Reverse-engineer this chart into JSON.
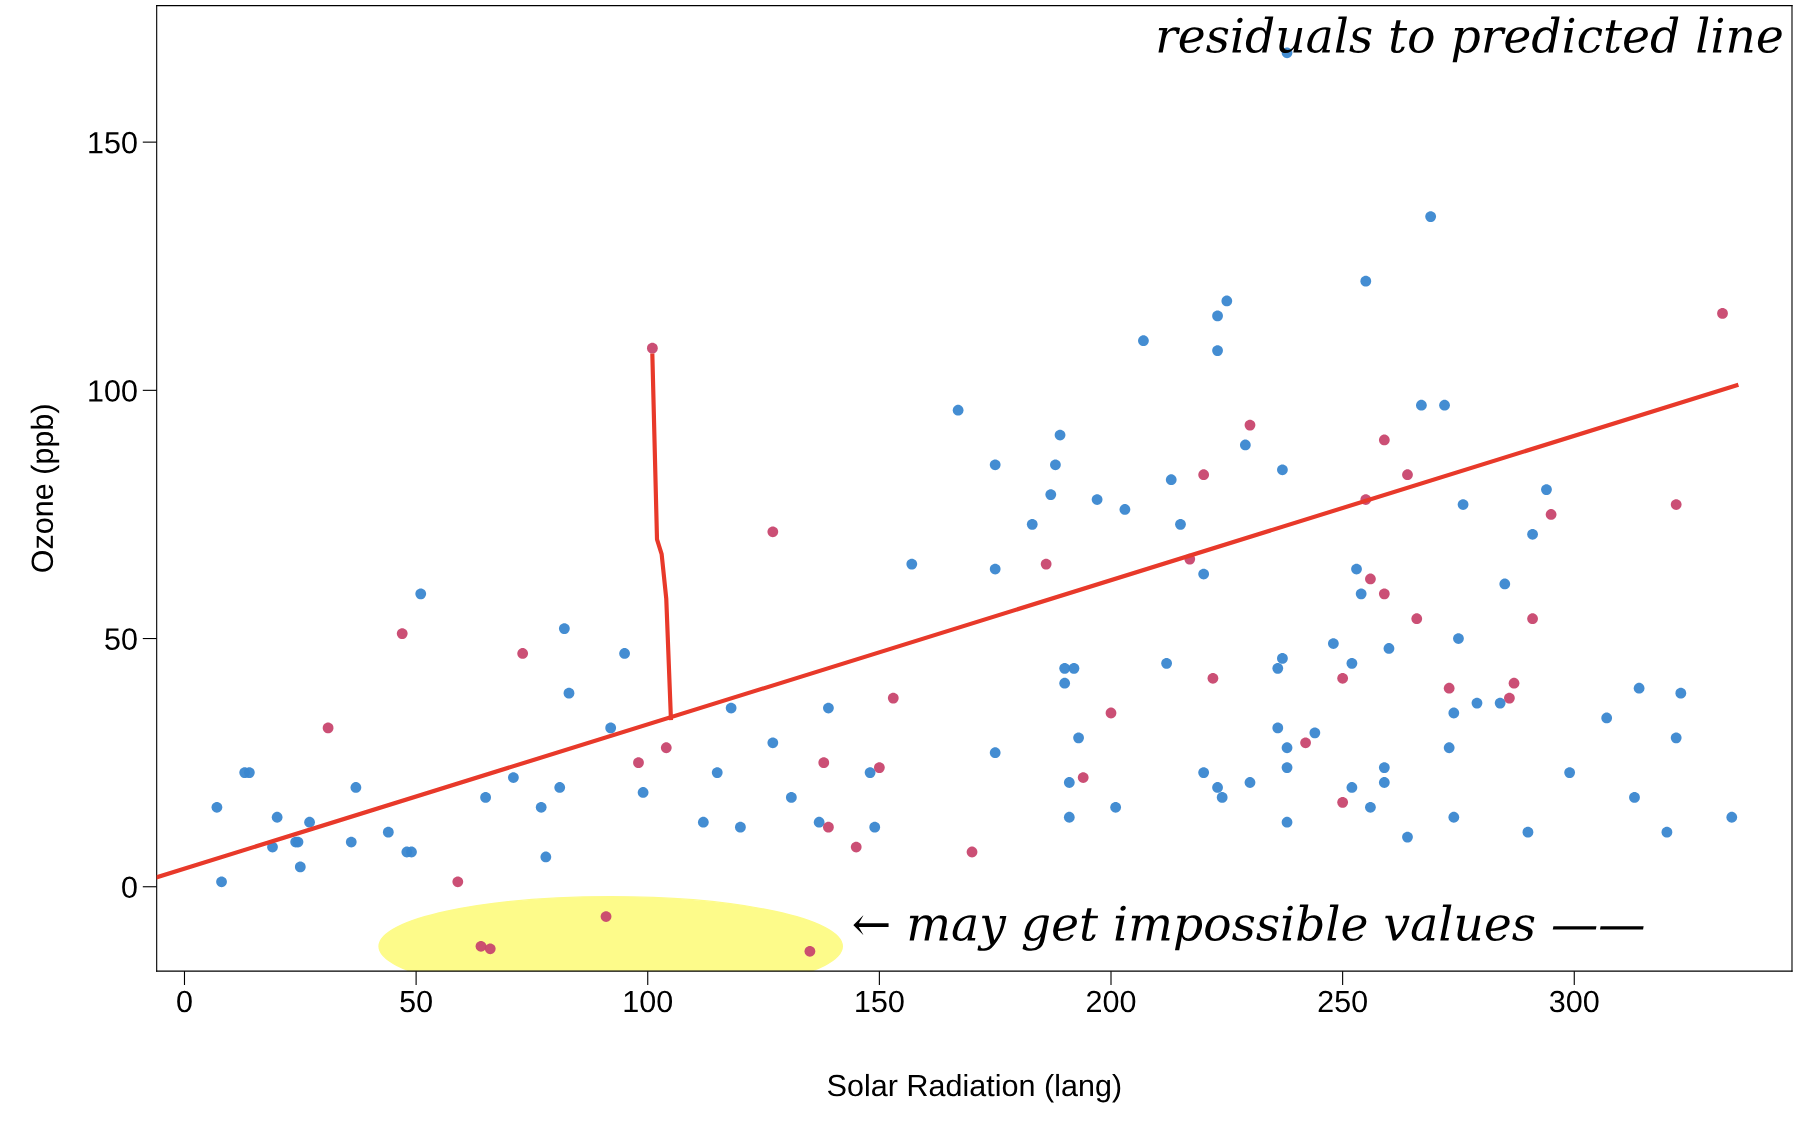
{
  "chart_data": {
    "type": "scatter",
    "xlabel": "Solar Radiation (lang)",
    "ylabel": "Ozone (ppb)",
    "xlim": [
      -6,
      347
    ],
    "ylim": [
      -17,
      177.5
    ],
    "xticks": [
      0,
      50,
      100,
      150,
      200,
      250,
      300
    ],
    "yticks": [
      0,
      50,
      100,
      150
    ],
    "grid": false,
    "legend": false,
    "series": [
      {
        "marker": "circle",
        "color": "#3a87d0",
        "x": [
          7,
          8,
          13,
          14,
          20,
          19,
          24,
          24.5,
          25,
          27,
          36,
          37,
          44,
          48,
          49,
          51,
          65,
          71,
          77,
          78,
          81,
          82,
          83,
          92,
          95,
          99,
          112,
          115,
          118,
          120,
          127,
          131,
          137,
          139,
          148,
          149,
          157,
          167,
          175,
          175,
          175,
          183,
          187,
          188,
          189,
          190,
          192,
          190,
          191,
          191,
          193,
          197,
          201,
          203,
          207,
          212,
          213,
          215,
          220,
          220,
          223,
          224,
          223,
          225,
          223,
          229,
          230,
          236,
          236,
          237,
          237,
          238,
          238,
          238,
          238,
          244,
          248,
          252,
          252,
          253,
          254,
          255,
          256,
          259,
          259,
          260,
          264,
          267,
          269,
          272,
          273,
          274,
          274,
          275,
          276,
          279,
          284,
          285,
          290,
          291,
          294,
          299,
          307,
          313,
          314,
          320,
          322,
          323,
          334
        ],
        "values": [
          16,
          1,
          23,
          23,
          14,
          8,
          9,
          9,
          4,
          13,
          9,
          20,
          11,
          7,
          7,
          59,
          18,
          22,
          16,
          6,
          20,
          52,
          39,
          32,
          47,
          19,
          13,
          23,
          36,
          12,
          29,
          18,
          13,
          36,
          23,
          12,
          65,
          96,
          85,
          64,
          27,
          73,
          79,
          85,
          91,
          44,
          44,
          41,
          21,
          14,
          30,
          78,
          16,
          76,
          110,
          45,
          82,
          73,
          63,
          23,
          20,
          18,
          115,
          118,
          108,
          89,
          21,
          32,
          44,
          46,
          84,
          24,
          28,
          13,
          168,
          31,
          49,
          20,
          45,
          64,
          59,
          122,
          16,
          24,
          21,
          48,
          10,
          97,
          135,
          97,
          28,
          14,
          35,
          50,
          77,
          37,
          37,
          61,
          11,
          71,
          80,
          23,
          34,
          18,
          40,
          11,
          30,
          39,
          14
        ]
      },
      {
        "marker": "circle",
        "color": "#c8466e",
        "x": [
          31,
          47,
          59,
          73,
          64,
          66,
          91,
          135,
          101,
          98,
          104,
          127,
          138,
          139,
          145,
          150,
          153,
          170,
          186,
          194,
          200,
          217,
          220,
          222,
          230,
          242,
          250,
          250,
          255,
          256,
          259,
          259,
          264,
          266,
          273,
          286,
          287,
          291,
          295,
          322,
          332
        ],
        "values": [
          32,
          51,
          1,
          47,
          -12,
          -12.5,
          -6,
          -13,
          108.5,
          25,
          28,
          71.5,
          25,
          12,
          8,
          24,
          38,
          7,
          65,
          22,
          35,
          66,
          83,
          42,
          93,
          29,
          42,
          17,
          78,
          62,
          59,
          90,
          83,
          54,
          40,
          38,
          41,
          54,
          75,
          77,
          115.5
        ]
      },
      {
        "type": "line",
        "marker": "none",
        "color": "#e8392a",
        "x": [
          -6,
          335
        ],
        "values": [
          1.9,
          101
        ]
      },
      {
        "type": "line",
        "marker": "none",
        "color": "#e8392a",
        "x": [
          101,
          102,
          103,
          104,
          105
        ],
        "values": [
          107,
          70,
          67,
          58,
          34
        ]
      }
    ],
    "annotations": [
      "residuals to predicted line",
      "← may get impossible values ——"
    ]
  }
}
